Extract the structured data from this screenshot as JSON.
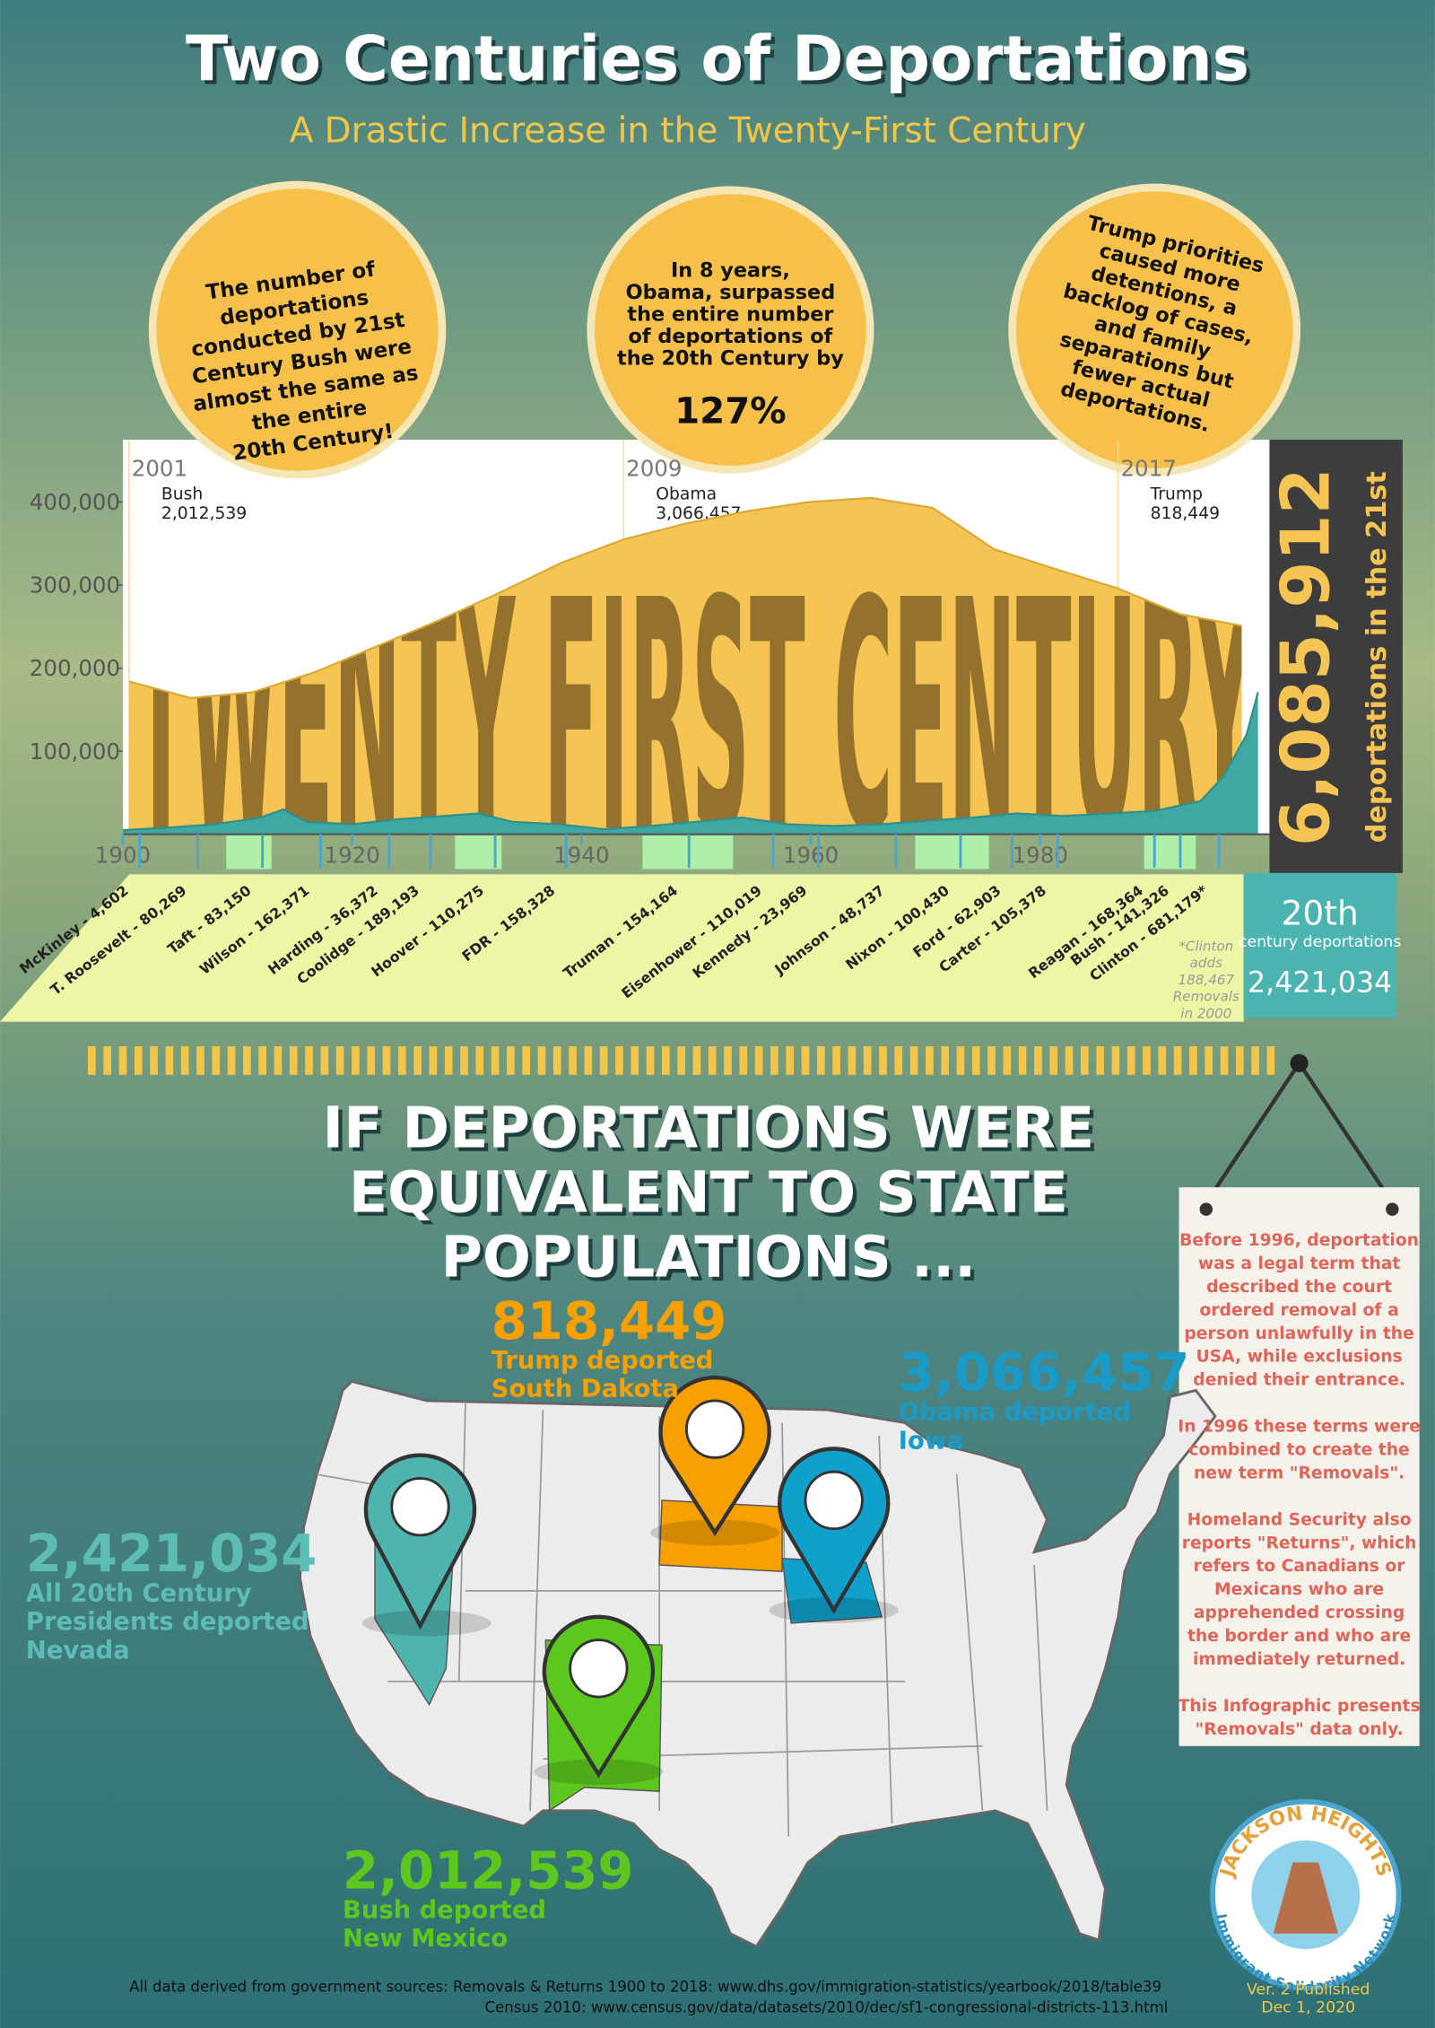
{
  "header": {
    "title": "Two Centuries of Deportations",
    "subtitle": "A Drastic Increase in the Twenty-First Century"
  },
  "callouts": [
    {
      "lines": [
        "The number of",
        "deportations",
        "conducted by 21st",
        "Century Bush were",
        "almost the same as",
        "the entire",
        "20th Century!"
      ]
    },
    {
      "lines": [
        "In 8 years,",
        "Obama, surpassed",
        "the entire number",
        "of deportations of",
        "the 20th Century by"
      ],
      "highlight": "127%"
    },
    {
      "lines": [
        "Trump priorities",
        "caused more",
        "detentions, a",
        "backlog of cases,",
        "and family",
        "separations but",
        "fewer actual",
        "deportations."
      ]
    }
  ],
  "chart_data": {
    "type": "area",
    "ylim": [
      0,
      475000
    ],
    "yticks": [
      {
        "value": 100000,
        "label": "100,000"
      },
      {
        "value": 200000,
        "label": "200,000"
      },
      {
        "value": 300000,
        "label": "300,000"
      },
      {
        "value": 400000,
        "label": "400,000"
      }
    ],
    "xlim": [
      1900,
      2000
    ],
    "xticks": [
      1900,
      1920,
      1940,
      1960,
      1980
    ],
    "x2lim": [
      2000.9,
      2019.45
    ],
    "x2ticks": [
      2001,
      2009,
      2017
    ],
    "overlay_text": "TWENTY FIRST CENTURY",
    "series": [
      {
        "color": "#f6c453",
        "xaxis": "x2",
        "x": [
          2001,
          2002,
          2003,
          2004,
          2005,
          2006,
          2007,
          2008,
          2009,
          2010,
          2011,
          2012,
          2013,
          2014,
          2015,
          2016,
          2017,
          2018,
          2019
        ],
        "values": [
          184000,
          164000,
          171000,
          195000,
          226000,
          257000,
          291000,
          327000,
          355000,
          374000,
          389000,
          400000,
          405000,
          393000,
          343000,
          319000,
          296000,
          265000,
          251000
        ]
      },
      {
        "color": "#3fa8a3",
        "x": [
          1900,
          1904,
          1908,
          1912,
          1914,
          1916,
          1920,
          1924,
          1928,
          1931,
          1934,
          1938,
          1942,
          1946,
          1950,
          1954,
          1958,
          1962,
          1966,
          1970,
          1974,
          1978,
          1982,
          1986,
          1990,
          1994,
          1996,
          1998,
          1999
        ],
        "values": [
          5000,
          8000,
          12000,
          20000,
          30000,
          15000,
          12000,
          18000,
          22000,
          25000,
          15000,
          12000,
          6000,
          10000,
          15000,
          20000,
          12000,
          10000,
          12000,
          16000,
          20000,
          25000,
          22000,
          25000,
          28000,
          40000,
          70000,
          120000,
          171000
        ]
      }
    ],
    "annotations": [
      {
        "x": 2001,
        "name": "Bush",
        "total": "2,012,539"
      },
      {
        "x": 2009,
        "name": "Obama",
        "total": "3,066,457"
      },
      {
        "x": 2017,
        "name": "Trump",
        "total": "818,449"
      }
    ],
    "presidents": [
      "McKinley - 4,602",
      "T. Roosevelt - 80,269",
      "Taft - 83,150",
      "Wilson - 162,371",
      "Harding - 36,372",
      "Coolidge - 189,193",
      "Hoover - 110,275",
      "FDR - 158,328",
      "Truman - 154,164",
      "Eisenhower - 110,019",
      "Kennedy - 23,969",
      "Johnson - 48,737",
      "Nixon - 100,430",
      "Ford - 62,903",
      "Carter - 105,378",
      "Reagan - 168,364",
      "Bush - 141,326",
      "Clinton - 681,179*"
    ],
    "clinton_note": [
      "*Clinton",
      "adds",
      "188,467",
      "Removals",
      "in 2000"
    ]
  },
  "total_21st": {
    "number": "6,085,912",
    "caption": "deportations in the 21st"
  },
  "total_20th": {
    "heading": "20th",
    "caption": "century deportations",
    "number": "2,421,034"
  },
  "state_section": {
    "headline": [
      "IF DEPORTATIONS WERE",
      "EQUIVALENT TO STATE",
      "POPULATIONS ..."
    ],
    "items": [
      {
        "number": "818,449",
        "lines": [
          "Trump deported",
          "South Dakota"
        ]
      },
      {
        "number": "3,066,457",
        "lines": [
          "Obama deported",
          "Iowa"
        ]
      },
      {
        "number": "2,421,034",
        "lines": [
          "All 20th Century",
          "Presidents deported",
          "Nevada"
        ]
      },
      {
        "number": "2,012,539",
        "lines": [
          "Bush deported",
          "New Mexico"
        ]
      }
    ]
  },
  "note": {
    "paragraphs": [
      [
        "Before 1996, deportation",
        "was a legal term that",
        "described the court",
        "ordered removal of a",
        "person unlawfully in the",
        "USA, while exclusions",
        "denied their entrance."
      ],
      [
        "In 1996 these terms were",
        "combined to create the",
        "new term \"Removals\"."
      ],
      [
        "Homeland Security also",
        "reports \"Returns\", which",
        "refers to Canadians or",
        "Mexicans who are",
        "apprehended crossing",
        "the border and who are",
        "immediately returned."
      ],
      [
        "This Infographic presents",
        "\"Removals\" data only."
      ]
    ]
  },
  "logo": {
    "top": "JACKSON HEIGHTS",
    "bottom": "Immigrant Solidarity Network"
  },
  "footer": {
    "sources": [
      "All data derived from government sources:  Removals & Returns 1900 to 2018: www.dhs.gov/immigration-statistics/yearbook/2018/table39",
      "Census 2010: www.census.gov/data/datasets/2010/dec/sf1-congressional-districts-113.html"
    ],
    "version": [
      "Ver. 2 Published",
      "Dec 1, 2020"
    ]
  }
}
